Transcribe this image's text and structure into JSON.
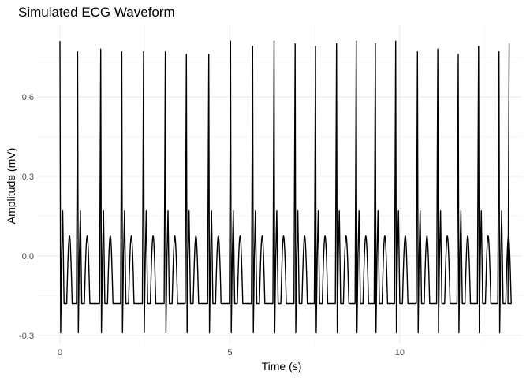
{
  "chart_data": {
    "type": "line",
    "title": "Simulated ECG Waveform",
    "xlabel": "Time (s)",
    "ylabel": "Amplitude (mV)",
    "xlim": [
      -0.65,
      13.6
    ],
    "ylim": [
      -0.33,
      0.87
    ],
    "x_ticks": [
      0,
      5,
      10
    ],
    "y_ticks": [
      -0.3,
      0.0,
      0.3,
      0.6
    ],
    "y_tick_labels": [
      "-0.3",
      "0.0",
      "0.3",
      "0.6"
    ],
    "x_tick_labels": [
      "0",
      "5",
      "10"
    ],
    "grid": true,
    "line_color": "#000000",
    "series": [
      {
        "beat_times": [
          0.0,
          0.52,
          1.2,
          1.82,
          2.46,
          3.1,
          3.72,
          4.38,
          5.02,
          5.67,
          6.3,
          6.92,
          7.52,
          8.14,
          8.72,
          9.28,
          9.88,
          10.52,
          11.12,
          11.72,
          12.32,
          12.92,
          13.22
        ],
        "r_peak_amplitude": [
          0.81,
          0.77,
          0.78,
          0.77,
          0.77,
          0.77,
          0.76,
          0.76,
          0.81,
          0.79,
          0.81,
          0.8,
          0.79,
          0.8,
          0.81,
          0.8,
          0.81,
          0.77,
          0.78,
          0.76,
          0.79,
          0.77,
          0.8
        ],
        "baseline": -0.18,
        "s_trough": -0.29,
        "q_amplitude": 0.17,
        "t_wave_peak": 0.075
      }
    ]
  }
}
